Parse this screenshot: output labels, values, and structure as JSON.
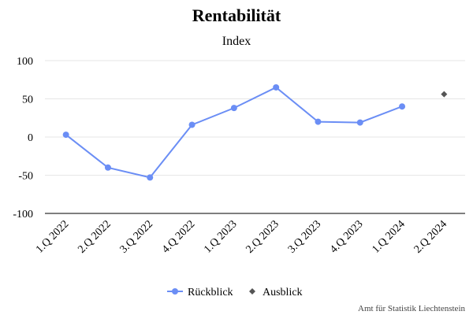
{
  "chart_data": {
    "type": "line",
    "title": "Rentabilität",
    "subtitle": "Index",
    "categories": [
      "1.Q 2022",
      "2.Q 2022",
      "3.Q 2022",
      "4.Q 2022",
      "1.Q 2023",
      "2.Q 2023",
      "3.Q 2023",
      "4.Q 2023",
      "1.Q 2024",
      "2.Q 2024"
    ],
    "ylim": [
      -100,
      100
    ],
    "yticks": [
      "100",
      "50",
      "0",
      "-50",
      "-100"
    ],
    "grid": true,
    "legend_position": "bottom",
    "series": [
      {
        "name": "Rückblick",
        "color": "#6b8ef5",
        "marker": "circle",
        "values": [
          3,
          -40,
          -53,
          16,
          38,
          65,
          20,
          19,
          40,
          null
        ]
      },
      {
        "name": "Ausblick",
        "color": "#555555",
        "marker": "diamond",
        "values": [
          null,
          null,
          null,
          null,
          null,
          null,
          null,
          null,
          null,
          56
        ]
      }
    ],
    "credit": "Amt für Statistik Liechtenstein"
  }
}
